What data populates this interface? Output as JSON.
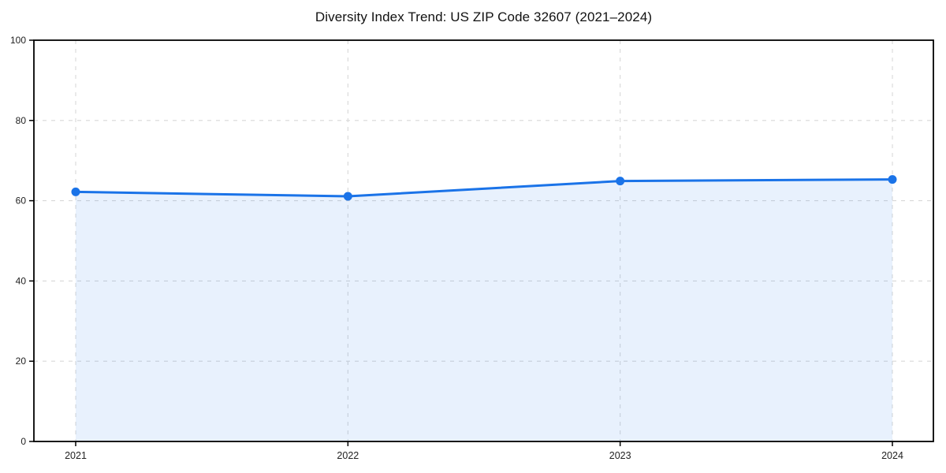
{
  "chart_data": {
    "type": "line",
    "title": "Diversity Index Trend: US ZIP Code 32607 (2021–2024)",
    "x": [
      2021,
      2022,
      2023,
      2024
    ],
    "xticks": [
      "2021",
      "2022",
      "2023",
      "2024"
    ],
    "yticks": [
      0,
      20,
      40,
      60,
      80,
      100
    ],
    "ylim": [
      0,
      100
    ],
    "series": [
      {
        "name": "Diversity Index",
        "values": [
          62.2,
          61.1,
          64.9,
          65.3
        ]
      }
    ],
    "xlabel": "",
    "ylabel": "",
    "grid": "dashed both axes",
    "legend": "none",
    "line_color": "#1a73e8",
    "marker_color": "#1a73e8",
    "fill_color": "#1a73e8",
    "fill_opacity": 0.1,
    "grid_color": "#d8d8d8",
    "axis_color": "#000000",
    "background_color": "#ffffff"
  }
}
